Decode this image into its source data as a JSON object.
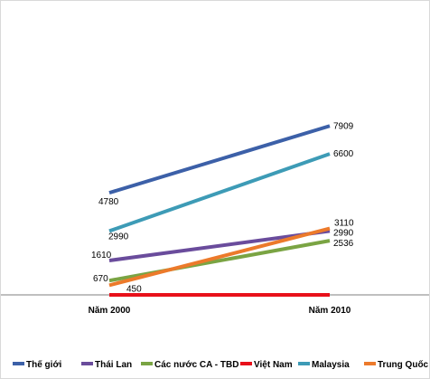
{
  "chart_data": {
    "type": "line",
    "categories": [
      "Năm 2000",
      "Năm 2010"
    ],
    "series": [
      {
        "name": "Thế giới",
        "values": [
          4780,
          7909
        ],
        "color": "#3c60a8"
      },
      {
        "name": "Thái Lan",
        "values": [
          1610,
          2990
        ],
        "color": "#6a4c9c"
      },
      {
        "name": "Các nước CA - TBD",
        "values": [
          670,
          2536
        ],
        "color": "#7aa443"
      },
      {
        "name": "Việt Nam",
        "values": [
          0,
          0
        ],
        "color": "#e8101a"
      },
      {
        "name": "Malaysia",
        "values": [
          2990,
          6600
        ],
        "color": "#3d9bb6"
      },
      {
        "name": "Trung Quốc",
        "values": [
          450,
          3110
        ],
        "color": "#ec7a2b"
      }
    ],
    "labels": [
      {
        "series": 0,
        "point": 0,
        "text": "4780"
      },
      {
        "series": 0,
        "point": 1,
        "text": "7909"
      },
      {
        "series": 4,
        "point": 0,
        "text": "2990"
      },
      {
        "series": 4,
        "point": 1,
        "text": "6600"
      },
      {
        "series": 1,
        "point": 0,
        "text": "1610"
      },
      {
        "series": 1,
        "point": 1,
        "text": "2990"
      },
      {
        "series": 2,
        "point": 0,
        "text": "670"
      },
      {
        "series": 2,
        "point": 1,
        "text": "2536"
      },
      {
        "series": 5,
        "point": 0,
        "text": "450"
      },
      {
        "series": 5,
        "point": 1,
        "text": "3110"
      }
    ],
    "legend_position": "bottom",
    "grid": false
  }
}
